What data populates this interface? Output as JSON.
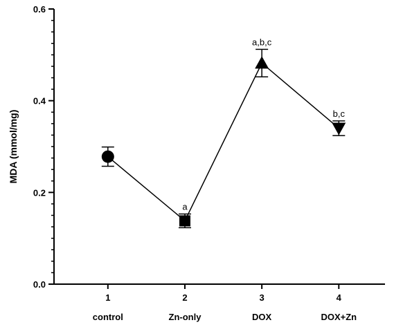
{
  "chart_data": {
    "type": "line",
    "title": "",
    "ylabel": "MDA (mmol/mg)",
    "xlabel": "",
    "x": [
      1,
      2,
      3,
      4
    ],
    "categories": [
      "control",
      "Zn-only",
      "DOX",
      "DOX+Zn"
    ],
    "ylim": [
      0,
      0.6
    ],
    "yticks": [
      "0.0",
      "0.2",
      "0.4",
      "0.6"
    ],
    "xticks": [
      "1",
      "2",
      "3",
      "4"
    ],
    "grid": false,
    "legend": "none",
    "series": [
      {
        "values": [
          0.278,
          0.138,
          0.482,
          0.34
        ],
        "error": [
          0.021,
          0.015,
          0.03,
          0.016
        ],
        "markers": [
          "circle",
          "square",
          "triangle-up",
          "triangle-down"
        ],
        "annotations": [
          "",
          "a",
          "a,b,c",
          "b,c"
        ],
        "color": "#000000"
      }
    ]
  }
}
